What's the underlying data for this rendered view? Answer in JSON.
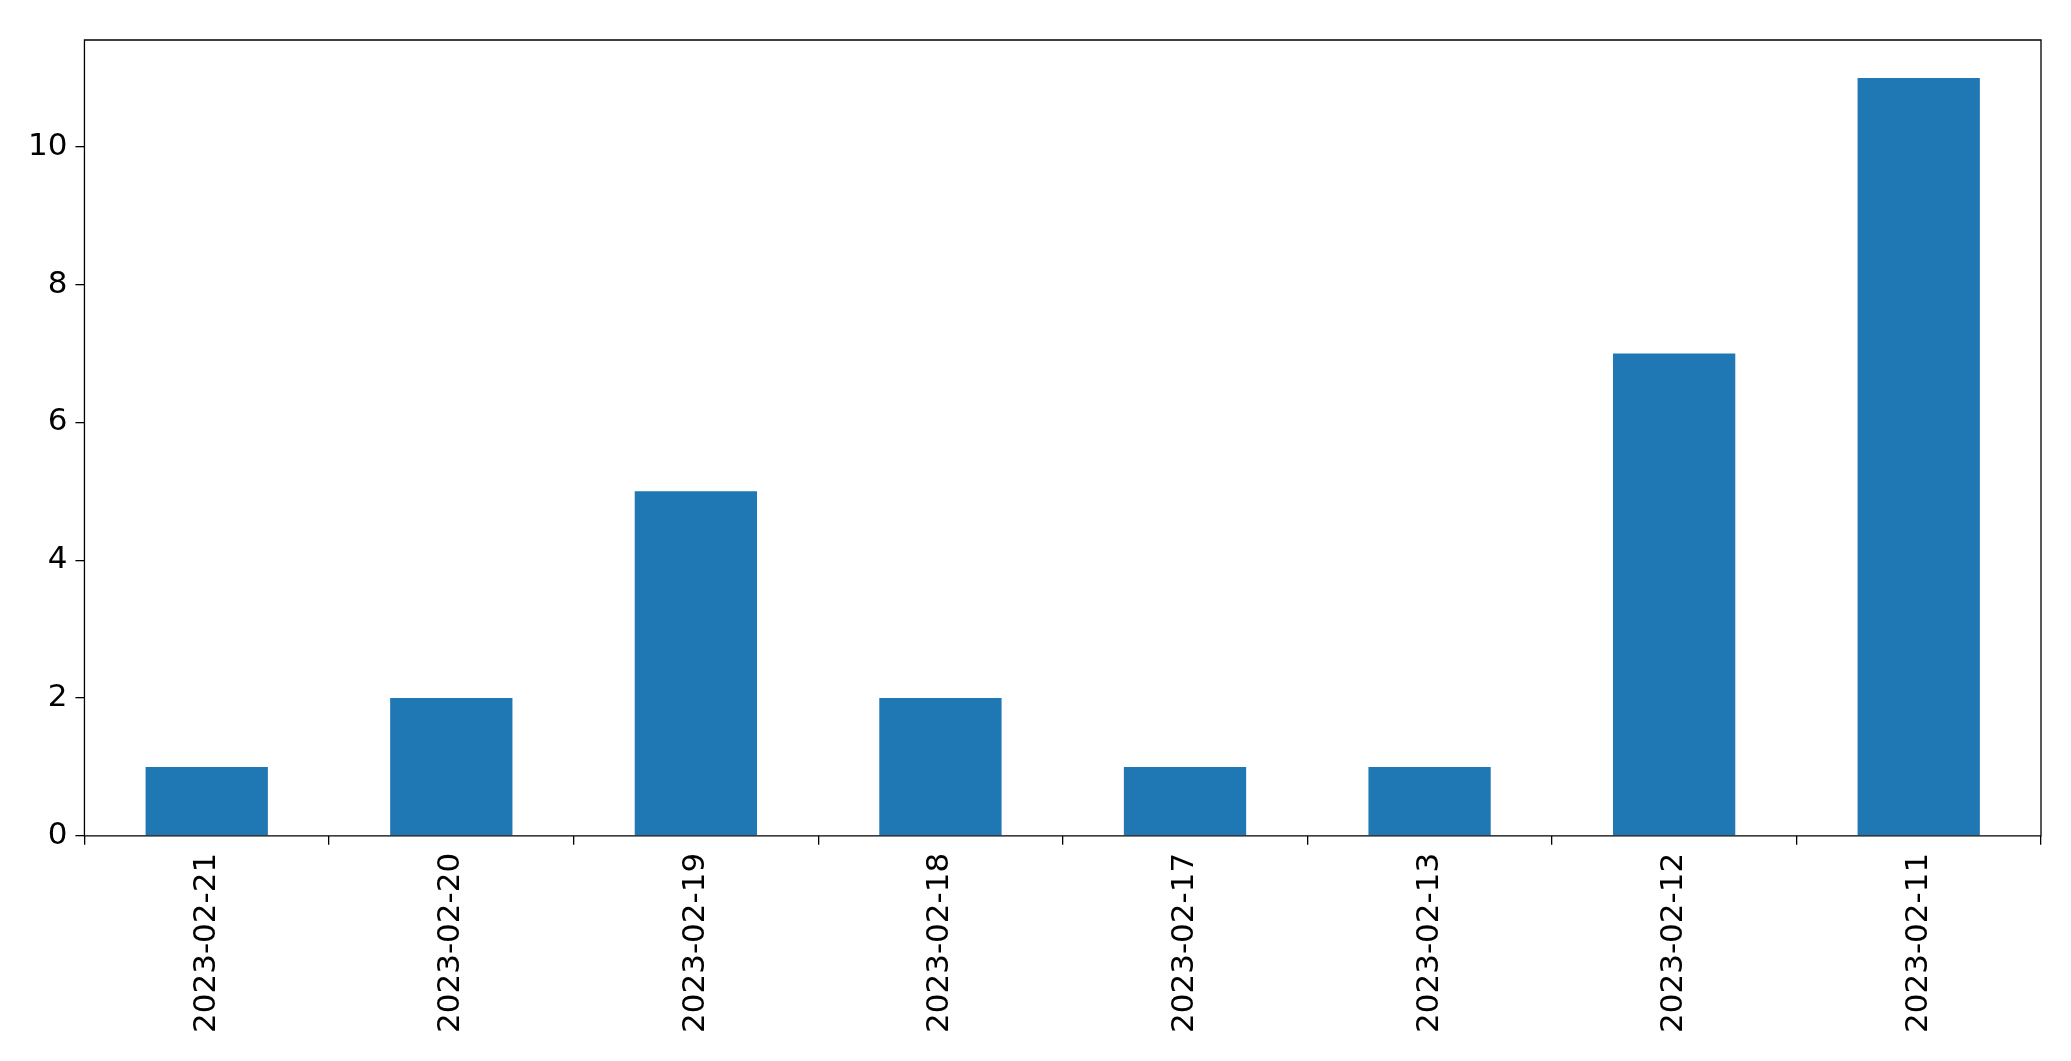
{
  "chart_data": {
    "type": "bar",
    "categories": [
      "2023-02-21",
      "2023-02-20",
      "2023-02-19",
      "2023-02-18",
      "2023-02-17",
      "2023-02-13",
      "2023-02-12",
      "2023-02-11"
    ],
    "values": [
      1,
      2,
      5,
      2,
      1,
      1,
      7,
      11
    ],
    "color": "#1f77b4",
    "ylim": [
      0,
      11.55
    ],
    "yticks": [
      0,
      2,
      4,
      6,
      8,
      10
    ],
    "grid": false,
    "legend": false
  }
}
